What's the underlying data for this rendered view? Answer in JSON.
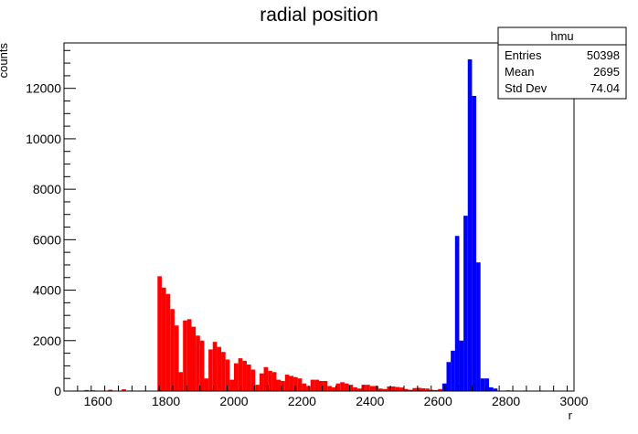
{
  "chart_data": {
    "type": "bar",
    "title": "radial position",
    "xlabel": "r",
    "ylabel": "counts",
    "xlim": [
      1500,
      3000
    ],
    "ylim": [
      0,
      13800
    ],
    "x_ticks": [
      1600,
      1800,
      2000,
      2200,
      2400,
      2600,
      2800,
      3000
    ],
    "y_ticks": [
      0,
      2000,
      4000,
      6000,
      8000,
      10000,
      12000
    ],
    "bin_width": 12.5,
    "grid": false,
    "legend": "none",
    "stats_box": {
      "name": "hmu",
      "rows": [
        {
          "label": "Entries",
          "value": "50398"
        },
        {
          "label": "Mean",
          "value": "2695"
        },
        {
          "label": "Std Dev",
          "value": "74.04"
        }
      ]
    },
    "series": [
      {
        "color": "#ff0000",
        "bins": [
          {
            "x": 1530,
            "y": 20
          },
          {
            "x": 1560,
            "y": 40
          },
          {
            "x": 1580,
            "y": 30
          },
          {
            "x": 1610,
            "y": 20
          },
          {
            "x": 1630,
            "y": 50
          },
          {
            "x": 1650,
            "y": 10
          },
          {
            "x": 1670,
            "y": 70
          },
          {
            "x": 1690,
            "y": 20
          },
          {
            "x": 1720,
            "y": 10
          },
          {
            "x": 1775,
            "y": 4550
          },
          {
            "x": 1787.5,
            "y": 4100
          },
          {
            "x": 1800,
            "y": 3850
          },
          {
            "x": 1812.5,
            "y": 3250
          },
          {
            "x": 1825,
            "y": 2600
          },
          {
            "x": 1837.5,
            "y": 750
          },
          {
            "x": 1850,
            "y": 2800
          },
          {
            "x": 1862.5,
            "y": 2850
          },
          {
            "x": 1875,
            "y": 2550
          },
          {
            "x": 1887.5,
            "y": 2200
          },
          {
            "x": 1900,
            "y": 2000
          },
          {
            "x": 1912.5,
            "y": 500
          },
          {
            "x": 1925,
            "y": 1650
          },
          {
            "x": 1937.5,
            "y": 1950
          },
          {
            "x": 1950,
            "y": 1750
          },
          {
            "x": 1962.5,
            "y": 1550
          },
          {
            "x": 1975,
            "y": 1250
          },
          {
            "x": 1987.5,
            "y": 450
          },
          {
            "x": 2000,
            "y": 1100
          },
          {
            "x": 2012.5,
            "y": 1300
          },
          {
            "x": 2025,
            "y": 1200
          },
          {
            "x": 2037.5,
            "y": 1050
          },
          {
            "x": 2050,
            "y": 850
          },
          {
            "x": 2062.5,
            "y": 250
          },
          {
            "x": 2075,
            "y": 700
          },
          {
            "x": 2087.5,
            "y": 950
          },
          {
            "x": 2100,
            "y": 800
          },
          {
            "x": 2112.5,
            "y": 750
          },
          {
            "x": 2125,
            "y": 450
          },
          {
            "x": 2137.5,
            "y": 400
          },
          {
            "x": 2150,
            "y": 650
          },
          {
            "x": 2162.5,
            "y": 600
          },
          {
            "x": 2175,
            "y": 550
          },
          {
            "x": 2187.5,
            "y": 500
          },
          {
            "x": 2200,
            "y": 300
          },
          {
            "x": 2212.5,
            "y": 200
          },
          {
            "x": 2225,
            "y": 450
          },
          {
            "x": 2237.5,
            "y": 450
          },
          {
            "x": 2250,
            "y": 400
          },
          {
            "x": 2262.5,
            "y": 400
          },
          {
            "x": 2275,
            "y": 200
          },
          {
            "x": 2287.5,
            "y": 150
          },
          {
            "x": 2300,
            "y": 300
          },
          {
            "x": 2312.5,
            "y": 350
          },
          {
            "x": 2325,
            "y": 300
          },
          {
            "x": 2337.5,
            "y": 250
          },
          {
            "x": 2350,
            "y": 150
          },
          {
            "x": 2362.5,
            "y": 100
          },
          {
            "x": 2375,
            "y": 250
          },
          {
            "x": 2387.5,
            "y": 250
          },
          {
            "x": 2400,
            "y": 200
          },
          {
            "x": 2412.5,
            "y": 200
          },
          {
            "x": 2425,
            "y": 100
          },
          {
            "x": 2437.5,
            "y": 80
          },
          {
            "x": 2450,
            "y": 180
          },
          {
            "x": 2462.5,
            "y": 180
          },
          {
            "x": 2475,
            "y": 160
          },
          {
            "x": 2487.5,
            "y": 140
          },
          {
            "x": 2500,
            "y": 80
          },
          {
            "x": 2512.5,
            "y": 50
          },
          {
            "x": 2525,
            "y": 120
          },
          {
            "x": 2537.5,
            "y": 130
          },
          {
            "x": 2550,
            "y": 110
          },
          {
            "x": 2562.5,
            "y": 100
          },
          {
            "x": 2575,
            "y": 50
          },
          {
            "x": 2587.5,
            "y": 40
          },
          {
            "x": 2600,
            "y": 80
          },
          {
            "x": 2612.5,
            "y": 60
          },
          {
            "x": 2800,
            "y": 30
          },
          {
            "x": 2850,
            "y": 20
          },
          {
            "x": 2900,
            "y": 20
          },
          {
            "x": 2950,
            "y": 10
          }
        ]
      },
      {
        "color": "#0000ff",
        "bins": [
          {
            "x": 2612.5,
            "y": 300
          },
          {
            "x": 2625,
            "y": 1150
          },
          {
            "x": 2637.5,
            "y": 1600
          },
          {
            "x": 2650,
            "y": 6150
          },
          {
            "x": 2662.5,
            "y": 2000
          },
          {
            "x": 2675,
            "y": 6950
          },
          {
            "x": 2687.5,
            "y": 13150
          },
          {
            "x": 2700,
            "y": 11700
          },
          {
            "x": 2712.5,
            "y": 5100
          },
          {
            "x": 2725,
            "y": 500
          },
          {
            "x": 2737.5,
            "y": 500
          },
          {
            "x": 2750,
            "y": 150
          },
          {
            "x": 2762.5,
            "y": 100
          }
        ]
      }
    ]
  }
}
